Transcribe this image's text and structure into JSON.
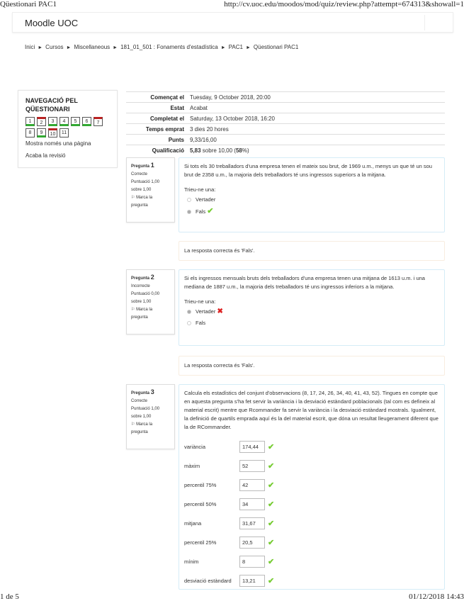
{
  "print_header": {
    "title": "Qüestionari PAC1",
    "url": "http://cv.uoc.edu/moodos/mod/quiz/review.php?attempt=674313&showall=1"
  },
  "print_footer": {
    "page": "1 de 5",
    "datetime": "01/12/2018 14:43"
  },
  "navbar": {
    "brand": "Moodle UOC"
  },
  "breadcrumb": [
    "Inici",
    "Cursos",
    "Miscellaneous",
    "181_01_501 : Fonaments d'estadística",
    "PAC1",
    "Qüestionari PAC1"
  ],
  "breadcrumb_sep": "►",
  "quiz_nav": {
    "title": "NAVEGACIÓ PEL QÜESTIONARI",
    "buttons": [
      {
        "n": "1",
        "state": "correct"
      },
      {
        "n": "2",
        "state": "incorrect"
      },
      {
        "n": "3",
        "state": "correct"
      },
      {
        "n": "4",
        "state": "correct"
      },
      {
        "n": "5",
        "state": "correct"
      },
      {
        "n": "6",
        "state": "correct"
      },
      {
        "n": "7",
        "state": "incorrect"
      },
      {
        "n": "8",
        "state": "none"
      },
      {
        "n": "9",
        "state": "correct"
      },
      {
        "n": "10",
        "state": "incorrect"
      },
      {
        "n": "11",
        "state": "none"
      }
    ],
    "show_one_page": "Mostra només una pàgina",
    "finish_review": "Acaba la revisió"
  },
  "summary": [
    {
      "k": "Començat el",
      "v": "Tuesday, 9 October 2018, 20:00"
    },
    {
      "k": "Estat",
      "v": "Acabat"
    },
    {
      "k": "Completat el",
      "v": "Saturday, 13 October 2018, 16:20"
    },
    {
      "k": "Temps emprat",
      "v": "3 dies 20 hores"
    },
    {
      "k": "Punts",
      "v": "9,33/16,00"
    },
    {
      "k": "Qualificació",
      "v_bold": "5,83",
      "v": " sobre 10,00 (",
      "pct": "58",
      "v_end": "%)"
    }
  ],
  "questions": [
    {
      "label": "Pregunta",
      "num": "1",
      "status": "Correcte",
      "score": "Puntuació 1,00 sobre 1,00",
      "flag": "Marca la pregunta",
      "text": "Si tots els 30 treballadors d'una empresa tenen el mateix sou brut, de 1969 u.m., menys un que té un sou brut de 2358 u.m., la majoria dels treballadors té uns ingressos superiors a la mitjana.",
      "prompt": "Trieu-ne una:",
      "options": [
        "Vertader",
        "Fals"
      ],
      "selected": 1,
      "feedback": "La resposta correcta és 'Fals'."
    },
    {
      "label": "Pregunta",
      "num": "2",
      "status": "Incorrecte",
      "score": "Puntuació 0,00 sobre 1,00",
      "flag": "Marca la pregunta",
      "text": "Si els ingressos mensuals bruts dels treballadors d'una empresa tenen una mitjana de 1613 u.m. i una mediana de 1887 u.m., la majoria dels treballadors té uns ingressos inferiors a la mitjana.",
      "prompt": "Trieu-ne una:",
      "options": [
        "Vertader",
        "Fals"
      ],
      "selected": 0,
      "feedback": "La resposta correcta és 'Fals'."
    },
    {
      "label": "Pregunta",
      "num": "3",
      "status": "Correcte",
      "score": "Puntuació 1,00 sobre 1,00",
      "flag": "Marca la pregunta",
      "text": "Calcula els estadístics del conjunt d'observacions (8, 17, 24, 26, 34, 40, 41, 43, 52). Tingues en compte que en aquesta pregunta s'ha fet servir la variància i la desviació estàndard poblacionals (tal com es defineix al material escrit) mentre que Rcommander fa servir la variància i la desviació estàndard mostrals. Igualment, la definició de quartils emprada aquí és la del material escrit, que dóna un resultat lleugerament diferent que la de RCommander.",
      "answers": [
        {
          "l": "variància",
          "v": "174,44"
        },
        {
          "l": "màxim",
          "v": "52"
        },
        {
          "l": "percentil 75%",
          "v": "42"
        },
        {
          "l": "percentil 50%",
          "v": "34"
        },
        {
          "l": "mitjana",
          "v": "31,67"
        },
        {
          "l": "percentil 25%",
          "v": "20,5"
        },
        {
          "l": "mínim",
          "v": "8"
        },
        {
          "l": "desviació estàndard",
          "v": "13,21"
        }
      ]
    }
  ],
  "icons": {
    "correct": "check-icon",
    "incorrect": "cross-icon",
    "flag": "flag-icon"
  },
  "colors": {
    "correct": "#77cc33",
    "incorrect": "#dd2222"
  }
}
